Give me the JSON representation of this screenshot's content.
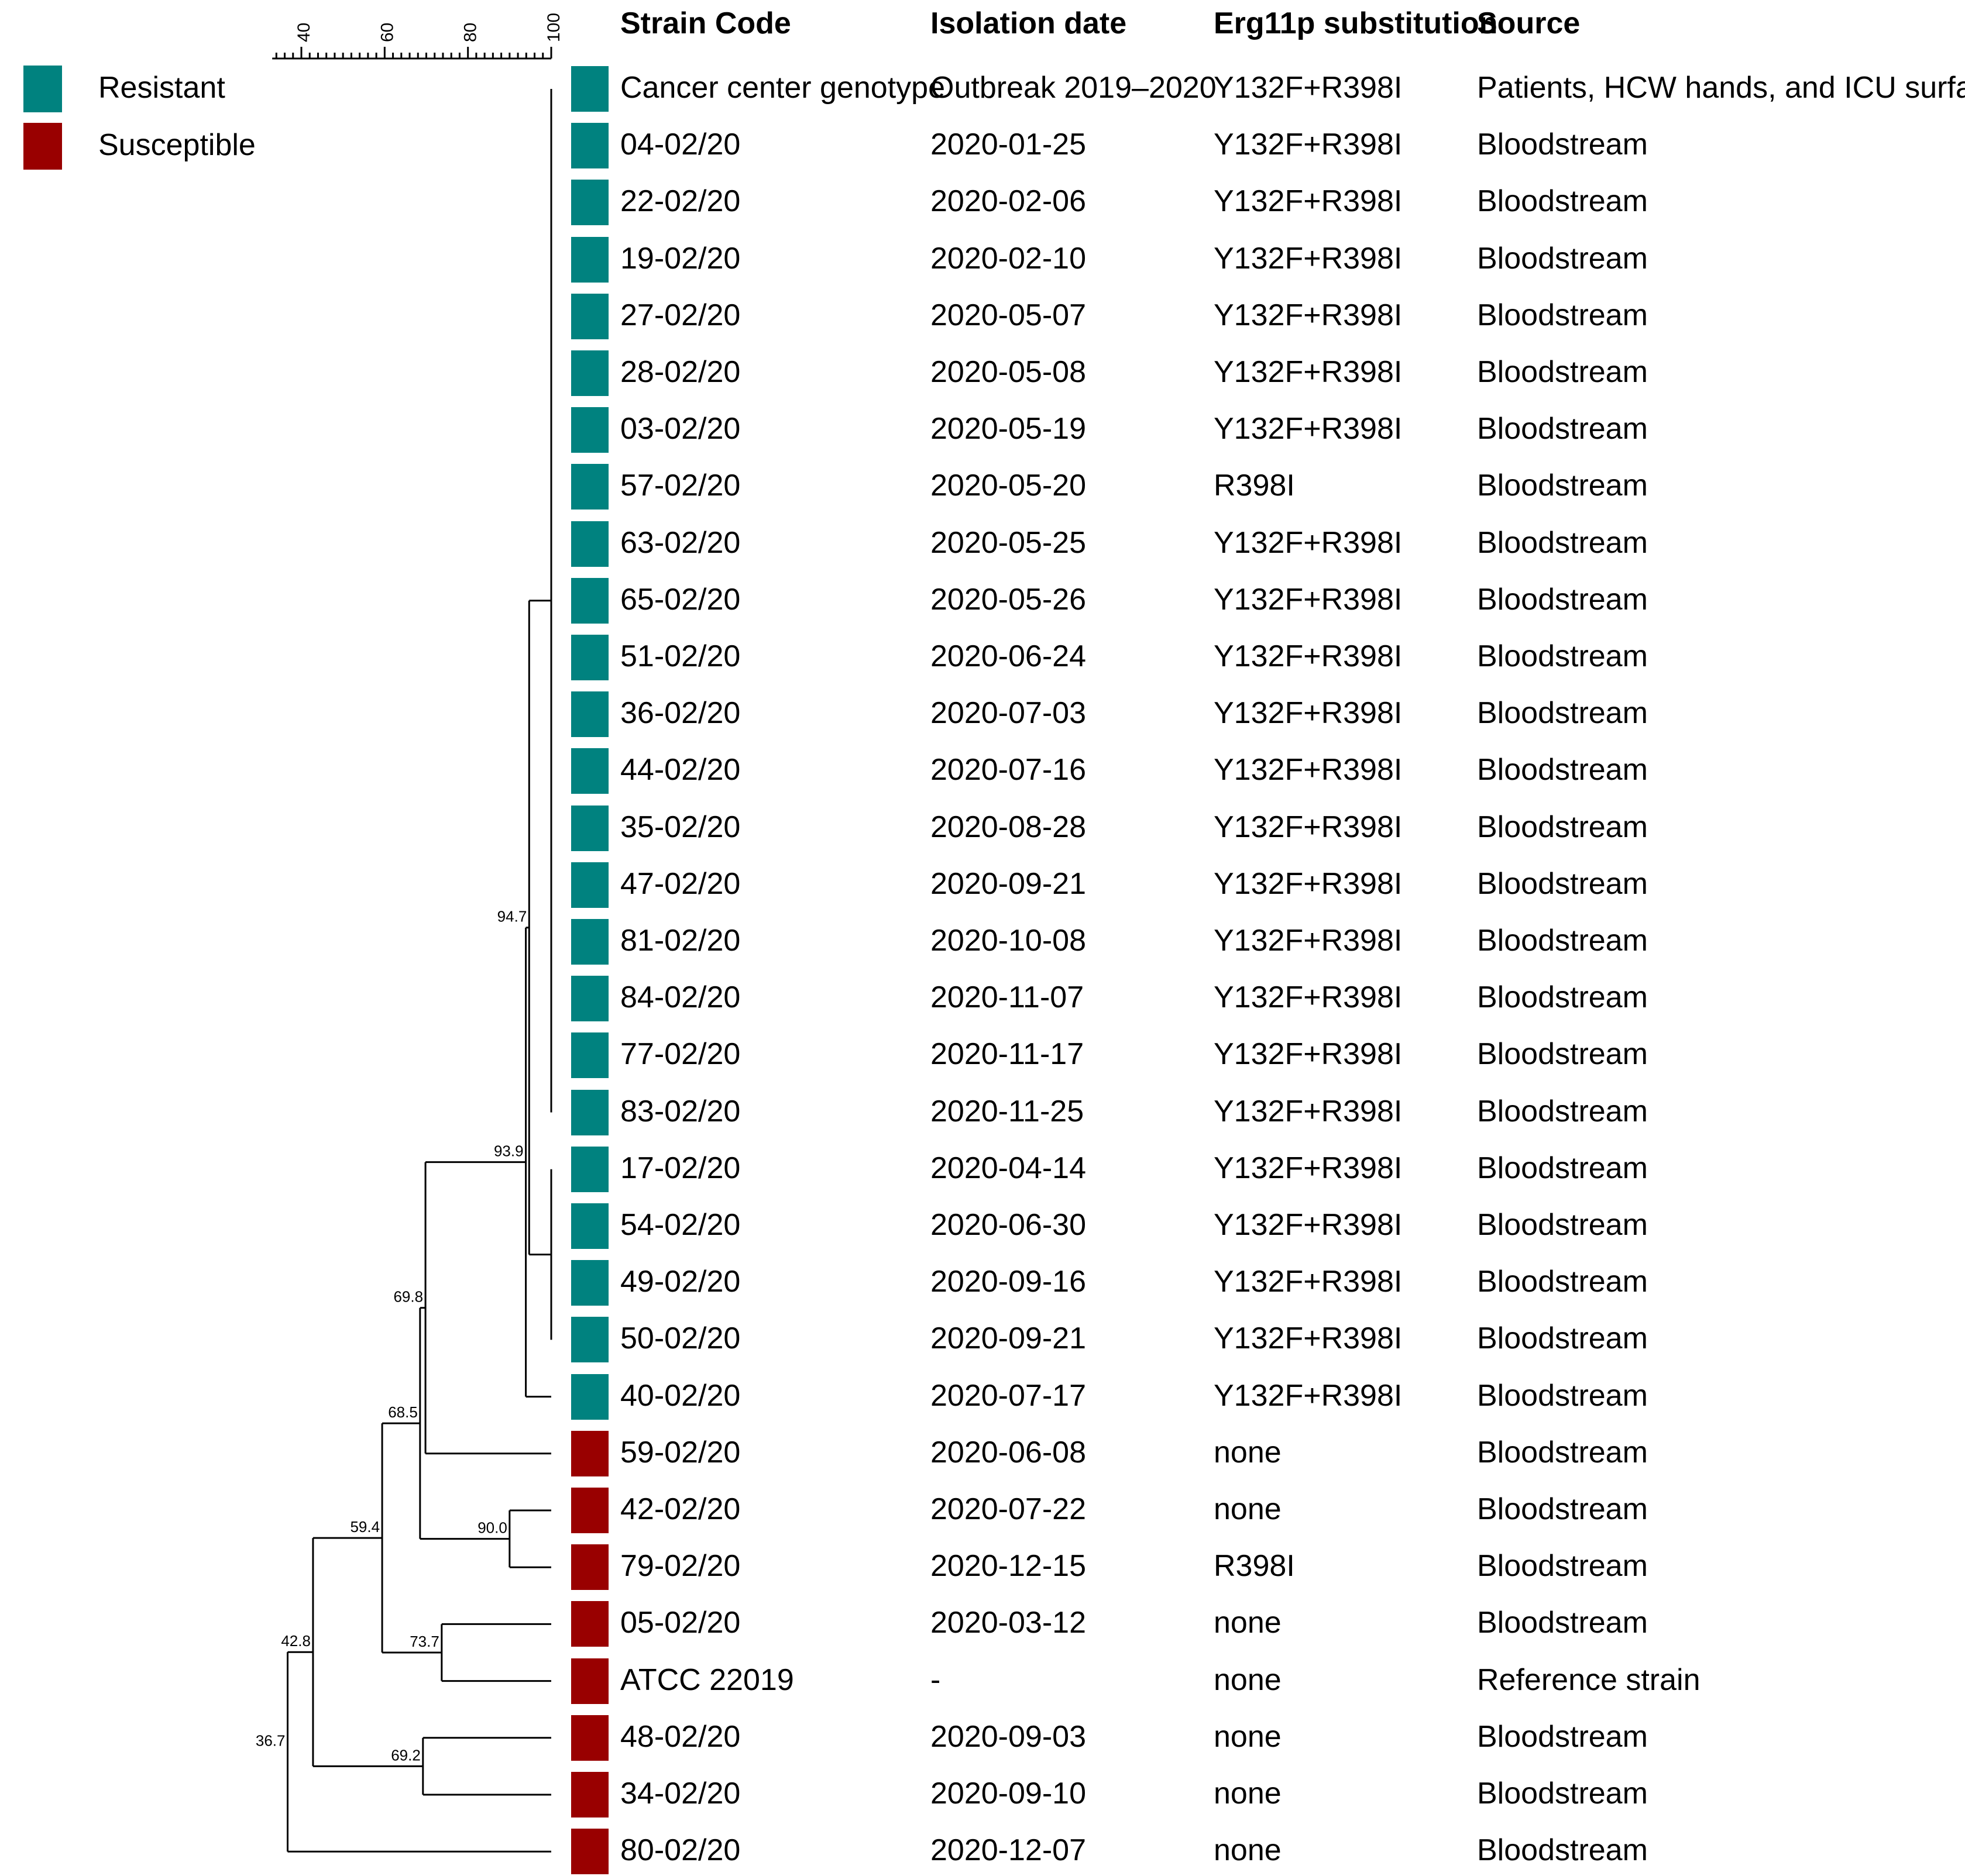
{
  "legend": [
    {
      "label": "Resistant",
      "color": "#00827f"
    },
    {
      "label": "Susceptible",
      "color": "#990000"
    }
  ],
  "scale": {
    "ticks": [
      "40",
      "60",
      "80",
      "100"
    ],
    "range": [
      33,
      100
    ]
  },
  "headers": {
    "strain": "Strain Code",
    "date": "Isolation date",
    "subst": "Erg11p substitution",
    "source": "Source"
  },
  "rows": [
    {
      "strain": "Cancer center genotype",
      "date": "Outbreak 2019–2020",
      "subst": "Y132F+R398I",
      "source": "Patients, HCW hands, and ICU surfaces",
      "phenotype": "resistant"
    },
    {
      "strain": "04-02/20",
      "date": "2020-01-25",
      "subst": "Y132F+R398I",
      "source": "Bloodstream",
      "phenotype": "resistant"
    },
    {
      "strain": "22-02/20",
      "date": "2020-02-06",
      "subst": "Y132F+R398I",
      "source": "Bloodstream",
      "phenotype": "resistant"
    },
    {
      "strain": "19-02/20",
      "date": "2020-02-10",
      "subst": "Y132F+R398I",
      "source": "Bloodstream",
      "phenotype": "resistant"
    },
    {
      "strain": "27-02/20",
      "date": "2020-05-07",
      "subst": "Y132F+R398I",
      "source": "Bloodstream",
      "phenotype": "resistant"
    },
    {
      "strain": "28-02/20",
      "date": "2020-05-08",
      "subst": "Y132F+R398I",
      "source": "Bloodstream",
      "phenotype": "resistant"
    },
    {
      "strain": "03-02/20",
      "date": "2020-05-19",
      "subst": "Y132F+R398I",
      "source": "Bloodstream",
      "phenotype": "resistant"
    },
    {
      "strain": "57-02/20",
      "date": "2020-05-20",
      "subst": "R398I",
      "source": "Bloodstream",
      "phenotype": "resistant"
    },
    {
      "strain": "63-02/20",
      "date": "2020-05-25",
      "subst": "Y132F+R398I",
      "source": "Bloodstream",
      "phenotype": "resistant"
    },
    {
      "strain": "65-02/20",
      "date": "2020-05-26",
      "subst": "Y132F+R398I",
      "source": "Bloodstream",
      "phenotype": "resistant"
    },
    {
      "strain": "51-02/20",
      "date": "2020-06-24",
      "subst": "Y132F+R398I",
      "source": "Bloodstream",
      "phenotype": "resistant"
    },
    {
      "strain": "36-02/20",
      "date": "2020-07-03",
      "subst": "Y132F+R398I",
      "source": "Bloodstream",
      "phenotype": "resistant"
    },
    {
      "strain": "44-02/20",
      "date": "2020-07-16",
      "subst": "Y132F+R398I",
      "source": "Bloodstream",
      "phenotype": "resistant"
    },
    {
      "strain": "35-02/20",
      "date": "2020-08-28",
      "subst": "Y132F+R398I",
      "source": "Bloodstream",
      "phenotype": "resistant"
    },
    {
      "strain": "47-02/20",
      "date": "2020-09-21",
      "subst": "Y132F+R398I",
      "source": "Bloodstream",
      "phenotype": "resistant"
    },
    {
      "strain": "81-02/20",
      "date": "2020-10-08",
      "subst": "Y132F+R398I",
      "source": "Bloodstream",
      "phenotype": "resistant"
    },
    {
      "strain": "84-02/20",
      "date": "2020-11-07",
      "subst": "Y132F+R398I",
      "source": "Bloodstream",
      "phenotype": "resistant"
    },
    {
      "strain": "77-02/20",
      "date": "2020-11-17",
      "subst": "Y132F+R398I",
      "source": "Bloodstream",
      "phenotype": "resistant"
    },
    {
      "strain": "83-02/20",
      "date": "2020-11-25",
      "subst": "Y132F+R398I",
      "source": "Bloodstream",
      "phenotype": "resistant"
    },
    {
      "strain": "17-02/20",
      "date": "2020-04-14",
      "subst": "Y132F+R398I",
      "source": "Bloodstream",
      "phenotype": "resistant"
    },
    {
      "strain": "54-02/20",
      "date": "2020-06-30",
      "subst": "Y132F+R398I",
      "source": "Bloodstream",
      "phenotype": "resistant"
    },
    {
      "strain": "49-02/20",
      "date": "2020-09-16",
      "subst": "Y132F+R398I",
      "source": "Bloodstream",
      "phenotype": "resistant"
    },
    {
      "strain": "50-02/20",
      "date": "2020-09-21",
      "subst": "Y132F+R398I",
      "source": "Bloodstream",
      "phenotype": "resistant"
    },
    {
      "strain": "40-02/20",
      "date": "2020-07-17",
      "subst": "Y132F+R398I",
      "source": "Bloodstream",
      "phenotype": "resistant"
    },
    {
      "strain": "59-02/20",
      "date": "2020-06-08",
      "subst": "none",
      "source": "Bloodstream",
      "phenotype": "susceptible"
    },
    {
      "strain": "42-02/20",
      "date": "2020-07-22",
      "subst": "none",
      "source": "Bloodstream",
      "phenotype": "susceptible"
    },
    {
      "strain": "79-02/20",
      "date": "2020-12-15",
      "subst": "R398I",
      "source": "Bloodstream",
      "phenotype": "susceptible"
    },
    {
      "strain": "05-02/20",
      "date": "2020-03-12",
      "subst": "none",
      "source": "Bloodstream",
      "phenotype": "susceptible"
    },
    {
      "strain": "ATCC 22019",
      "date": "-",
      "subst": "none",
      "source": "Reference strain",
      "phenotype": "susceptible"
    },
    {
      "strain": "48-02/20",
      "date": "2020-09-03",
      "subst": "none",
      "source": "Bloodstream",
      "phenotype": "susceptible"
    },
    {
      "strain": "34-02/20",
      "date": "2020-09-10",
      "subst": "none",
      "source": "Bloodstream",
      "phenotype": "susceptible"
    },
    {
      "strain": "80-02/20",
      "date": "2020-12-07",
      "subst": "none",
      "source": "Bloodstream",
      "phenotype": "susceptible"
    }
  ],
  "tree": {
    "nodes": [
      {
        "id": "A",
        "sim": 100,
        "rows": [
          0,
          18
        ],
        "label": ""
      },
      {
        "id": "B",
        "sim": 100,
        "rows": [
          19,
          22
        ],
        "label": ""
      },
      {
        "id": "C",
        "sim": 94.7,
        "children": [
          "A",
          "B"
        ],
        "label": "94.7"
      },
      {
        "id": "D",
        "sim": 93.9,
        "children": [
          "C",
          23
        ],
        "label": "93.9"
      },
      {
        "id": "E",
        "sim": 69.8,
        "children": [
          "D",
          24
        ],
        "label": "69.8"
      },
      {
        "id": "F",
        "sim": 90.0,
        "children": [
          25,
          26
        ],
        "label": "90.0"
      },
      {
        "id": "G",
        "sim": 68.5,
        "children": [
          "E",
          "F"
        ],
        "label": "68.5"
      },
      {
        "id": "H",
        "sim": 73.7,
        "children": [
          27,
          28
        ],
        "label": "73.7"
      },
      {
        "id": "I",
        "sim": 59.4,
        "children": [
          "G",
          "H"
        ],
        "label": "59.4"
      },
      {
        "id": "J",
        "sim": 69.2,
        "children": [
          29,
          30
        ],
        "label": "69.2"
      },
      {
        "id": "K",
        "sim": 42.8,
        "children": [
          "I",
          "J"
        ],
        "label": "42.8"
      },
      {
        "id": "L",
        "sim": 36.7,
        "children": [
          "K",
          31
        ],
        "label": "36.7"
      }
    ]
  }
}
